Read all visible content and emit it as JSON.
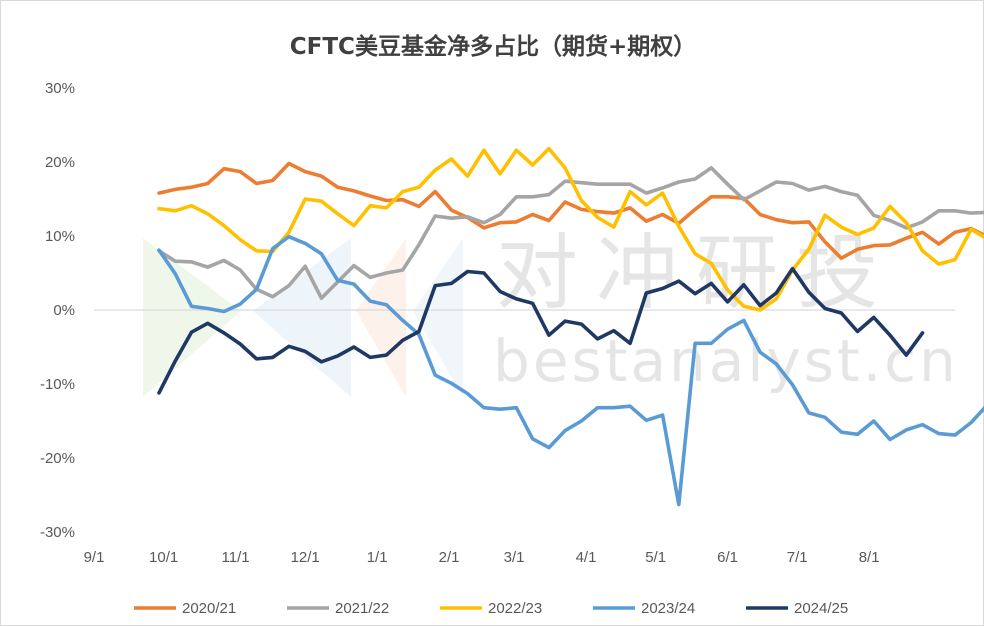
{
  "chart_data": {
    "type": "line",
    "title": "CFTC美豆基金净多占比（期货+期权）",
    "x_tick_labels": [
      "9/1",
      "10/1",
      "11/1",
      "12/1",
      "1/1",
      "2/1",
      "3/1",
      "4/1",
      "5/1",
      "6/1",
      "7/1",
      "8/1"
    ],
    "y_tick_labels": [
      "30%",
      "20%",
      "10%",
      "0%",
      "-10%",
      "-20%",
      "-30%"
    ],
    "ylim": [
      -30,
      30
    ],
    "y_unit": "%",
    "x_axis": "weekly, Sep 1 to end of Aug",
    "gridlines": false,
    "legend_position": "bottom",
    "watermark": {
      "cn": "对冲研投",
      "en": "bestanalyst.cn"
    },
    "series": [
      {
        "name": "2020/21",
        "color": "#ED7D31",
        "x_start_week": 4,
        "values": [
          15.8,
          16.3,
          16.6,
          17.1,
          19.1,
          18.7,
          17.1,
          17.5,
          19.8,
          18.7,
          18.1,
          16.6,
          16.1,
          15.4,
          14.8,
          14.9,
          14.0,
          16.0,
          13.5,
          12.5,
          11.1,
          11.8,
          11.9,
          12.9,
          12.1,
          14.6,
          13.6,
          13.3,
          13.1,
          13.8,
          12.0,
          12.9,
          11.7,
          13.6,
          15.3,
          15.3,
          15.1,
          12.9,
          12.2,
          11.8,
          11.9,
          9.2,
          7.0,
          8.2,
          8.7,
          8.8,
          9.7,
          10.5,
          8.9,
          10.5,
          11.0,
          9.9
        ]
      },
      {
        "name": "2021/22",
        "color": "#A5A5A5",
        "x_start_week": 4,
        "values": [
          8.0,
          6.6,
          6.5,
          5.8,
          6.7,
          5.4,
          2.8,
          1.8,
          3.3,
          5.9,
          1.6,
          3.8,
          6.0,
          4.4,
          5.0,
          5.4,
          8.8,
          12.7,
          12.4,
          12.6,
          11.8,
          12.9,
          15.3,
          15.3,
          15.6,
          17.4,
          17.2,
          17.0,
          17.0,
          17.0,
          15.8,
          16.5,
          17.3,
          17.7,
          19.2,
          17.0,
          14.9,
          16.1,
          17.3,
          17.1,
          16.2,
          16.7,
          16.0,
          15.5,
          12.8,
          12.1,
          11.1,
          11.9,
          13.4,
          13.4,
          13.1,
          13.2
        ]
      },
      {
        "name": "2022/23",
        "color": "#FFC000",
        "x_start_week": 4,
        "values": [
          13.7,
          13.4,
          14.1,
          13.0,
          11.4,
          9.5,
          8.0,
          7.9,
          10.5,
          15.0,
          14.7,
          13.0,
          11.4,
          14.1,
          13.8,
          16.0,
          16.6,
          18.9,
          20.4,
          18.1,
          21.6,
          18.4,
          21.6,
          19.6,
          21.8,
          19.2,
          14.8,
          12.5,
          11.2,
          16.0,
          14.2,
          15.8,
          11.3,
          7.6,
          6.3,
          2.7,
          0.5,
          0.0,
          1.5,
          5.4,
          8.2,
          12.8,
          11.2,
          10.2,
          11.1,
          14.0,
          11.8,
          8.0,
          6.2,
          6.8,
          10.9,
          9.6
        ]
      },
      {
        "name": "2023/24",
        "color": "#5B9BD5",
        "x_start_week": 4,
        "values": [
          8.1,
          4.9,
          0.5,
          0.2,
          -0.2,
          0.8,
          2.8,
          8.3,
          9.9,
          9.0,
          7.6,
          4.0,
          3.5,
          1.2,
          0.7,
          -1.4,
          -3.3,
          -8.8,
          -9.9,
          -11.3,
          -13.2,
          -13.4,
          -13.2,
          -17.4,
          -18.6,
          -16.3,
          -15.0,
          -13.2,
          -13.2,
          -13.0,
          -14.9,
          -14.2,
          -26.3,
          -4.5,
          -4.5,
          -2.6,
          -1.4,
          -5.7,
          -7.3,
          -10.1,
          -13.9,
          -14.5,
          -16.5,
          -16.8,
          -15.0,
          -17.5,
          -16.2,
          -15.5,
          -16.7,
          -16.9,
          -15.2,
          -12.8
        ]
      },
      {
        "name": "2024/25",
        "color": "#203864",
        "x_start_week": 4,
        "values": [
          -11.2,
          -6.9,
          -3.0,
          -1.8,
          -3.1,
          -4.6,
          -6.6,
          -6.4,
          -4.9,
          -5.6,
          -7.0,
          -6.2,
          -5.0,
          -6.4,
          -6.1,
          -4.1,
          -2.9,
          3.3,
          3.6,
          5.2,
          5.0,
          2.5,
          1.5,
          0.9,
          -3.4,
          -1.5,
          -1.9,
          -3.9,
          -2.8,
          -4.5,
          2.3,
          2.9,
          3.9,
          2.2,
          3.6,
          1.1,
          3.4,
          0.6,
          2.3,
          5.6,
          2.4,
          0.2,
          -0.4,
          -2.9,
          -1.0,
          -3.4,
          -6.1,
          -3.1
        ]
      }
    ]
  }
}
